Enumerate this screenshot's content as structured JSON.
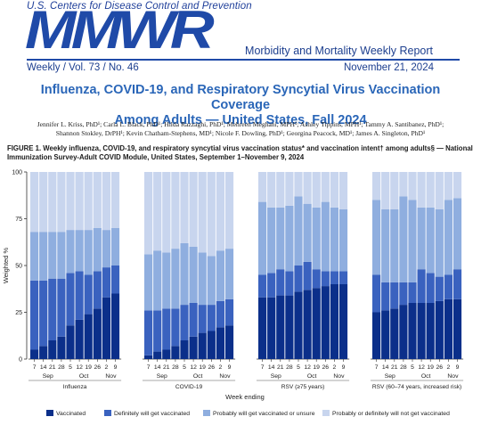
{
  "header": {
    "agency": "U.S. Centers for Disease Control and Prevention",
    "logo": "MMWR",
    "report_name": "Morbidity and Mortality Weekly Report",
    "issue": "Weekly / Vol. 73 / No. 46",
    "date": "November 21, 2024"
  },
  "article": {
    "title_line1": "Influenza, COVID-19, and Respiratory Syncytial Virus Vaccination Coverage",
    "title_line2": "Among Adults — United States, Fall 2024",
    "authors_line1": "Jennifer L. Kriss, PhD¹; Carla L. Black, PhD¹; Hilda Razzaghi, PhD¹; Mehreen Meghani, MPH¹; Ashley Tippins, MPH¹; Tammy A. Santibanez, PhD¹;",
    "authors_line2": "Shannon Stokley, DrPH¹; Kevin Chatham-Stephens, MD¹; Nicole F. Dowling, PhD¹; Georgina Peacock, MD¹; James A. Singleton, PhD¹",
    "caption_label": "FIGURE 1.",
    "caption_text": "Weekly influenza, COVID-19, and respiratory syncytial virus vaccination status* and vaccination intent† among adults§ — National Immunization Survey-Adult COVID Module, United States, September 1–November 9, 2024"
  },
  "chart_data": {
    "type": "bar",
    "stacked": true,
    "ylabel": "Weighted %",
    "xlabel": "Week ending",
    "ylim": [
      0,
      100
    ],
    "yticks": [
      0,
      25,
      50,
      75,
      100
    ],
    "grid": false,
    "legend_position": "bottom",
    "colors": [
      "#0b2f8a",
      "#3a62bf",
      "#8faedf",
      "#c8d5ee"
    ],
    "series_names": [
      "Vaccinated",
      "Definitely will get vaccinated",
      "Probably will get vaccinated or unsure",
      "Probably or definitely will not get vaccinated"
    ],
    "panels": [
      {
        "name": "Influenza",
        "categories": [
          "7",
          "14",
          "21",
          "28",
          "5",
          "12",
          "19",
          "26",
          "2",
          "9"
        ],
        "months": [
          {
            "label": "Sep",
            "from": 0,
            "to": 3
          },
          {
            "label": "Oct",
            "from": 4,
            "to": 7
          },
          {
            "label": "Nov",
            "from": 8,
            "to": 9
          }
        ],
        "series": [
          {
            "name": "Vaccinated",
            "values": [
              5,
              7,
              10,
              12,
              18,
              21,
              24,
              27,
              33,
              35
            ]
          },
          {
            "name": "Definitely will get vaccinated",
            "values": [
              37,
              35,
              33,
              31,
              28,
              26,
              21,
              20,
              16,
              15
            ]
          },
          {
            "name": "Probably will get vaccinated or unsure",
            "values": [
              26,
              26,
              25,
              25,
              23,
              22,
              24,
              23,
              20,
              20
            ]
          },
          {
            "name": "Probably or definitely will not get vaccinated",
            "values": [
              32,
              32,
              32,
              32,
              31,
              31,
              31,
              30,
              31,
              30
            ]
          }
        ]
      },
      {
        "name": "COVID-19",
        "categories": [
          "7",
          "14",
          "21",
          "28",
          "5",
          "12",
          "19",
          "26",
          "2",
          "9"
        ],
        "months": [
          {
            "label": "Sep",
            "from": 0,
            "to": 3
          },
          {
            "label": "Oct",
            "from": 4,
            "to": 7
          },
          {
            "label": "Nov",
            "from": 8,
            "to": 9
          }
        ],
        "series": [
          {
            "name": "Vaccinated",
            "values": [
              2,
              4,
              5,
              7,
              10,
              12,
              14,
              15,
              17,
              18
            ]
          },
          {
            "name": "Definitely will get vaccinated",
            "values": [
              24,
              22,
              22,
              20,
              19,
              18,
              15,
              14,
              14,
              14
            ]
          },
          {
            "name": "Probably will get vaccinated or unsure",
            "values": [
              30,
              32,
              30,
              32,
              33,
              30,
              28,
              26,
              27,
              27
            ]
          },
          {
            "name": "Probably or definitely will not get vaccinated",
            "values": [
              44,
              42,
              43,
              41,
              38,
              40,
              43,
              45,
              42,
              41
            ]
          }
        ]
      },
      {
        "name": "RSV (≥75 years)",
        "categories": [
          "7",
          "14",
          "21",
          "28",
          "5",
          "12",
          "19",
          "26",
          "2",
          "9"
        ],
        "months": [
          {
            "label": "Sep",
            "from": 0,
            "to": 3
          },
          {
            "label": "Oct",
            "from": 4,
            "to": 7
          },
          {
            "label": "Nov",
            "from": 8,
            "to": 9
          }
        ],
        "series": [
          {
            "name": "Vaccinated",
            "values": [
              33,
              33,
              34,
              34,
              36,
              37,
              38,
              39,
              40,
              40
            ]
          },
          {
            "name": "Definitely will get vaccinated",
            "values": [
              12,
              13,
              14,
              13,
              14,
              15,
              10,
              8,
              7,
              7
            ]
          },
          {
            "name": "Probably will get vaccinated or unsure",
            "values": [
              39,
              35,
              33,
              35,
              37,
              31,
              33,
              37,
              34,
              33
            ]
          },
          {
            "name": "Probably or definitely will not get vaccinated",
            "values": [
              16,
              19,
              19,
              18,
              13,
              17,
              19,
              16,
              19,
              20
            ]
          }
        ]
      },
      {
        "name": "RSV (60–74 years, increased risk)",
        "categories": [
          "7",
          "14",
          "21",
          "28",
          "5",
          "12",
          "19",
          "26",
          "2",
          "9"
        ],
        "months": [
          {
            "label": "Sep",
            "from": 0,
            "to": 3
          },
          {
            "label": "Oct",
            "from": 4,
            "to": 7
          },
          {
            "label": "Nov",
            "from": 8,
            "to": 9
          }
        ],
        "series": [
          {
            "name": "Vaccinated",
            "values": [
              25,
              26,
              27,
              29,
              30,
              30,
              30,
              31,
              32,
              32
            ]
          },
          {
            "name": "Definitely will get vaccinated",
            "values": [
              20,
              15,
              14,
              12,
              11,
              18,
              16,
              13,
              13,
              16
            ]
          },
          {
            "name": "Probably will get vaccinated or unsure",
            "values": [
              40,
              39,
              39,
              46,
              44,
              33,
              35,
              36,
              40,
              38
            ]
          },
          {
            "name": "Probably or definitely will not get vaccinated",
            "values": [
              15,
              20,
              20,
              13,
              15,
              19,
              19,
              20,
              15,
              14
            ]
          }
        ]
      }
    ]
  }
}
